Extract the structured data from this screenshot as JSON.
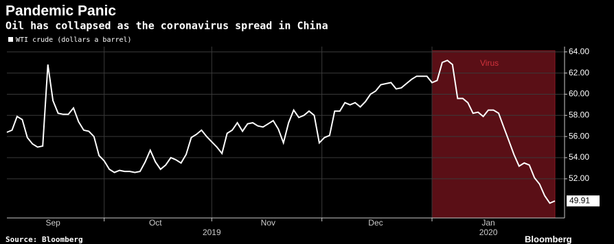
{
  "chart_data": {
    "type": "line",
    "title": "Pandemic Panic",
    "subtitle": "Oil has collapsed as the coronavirus spread in China",
    "source": "Source: Bloomberg",
    "brand": "Bloomberg",
    "annotation": "Virus",
    "categories": [
      null,
      null,
      null,
      null,
      null,
      null,
      null,
      null,
      null,
      "Sep",
      null,
      null,
      null,
      null,
      null,
      null,
      null,
      null,
      null,
      null,
      null,
      null,
      null,
      null,
      null,
      null,
      null,
      null,
      null,
      "Oct",
      null,
      null,
      null,
      null,
      null,
      null,
      null,
      null,
      null,
      null,
      null,
      null,
      null,
      null,
      null,
      null,
      null,
      null,
      null,
      null,
      null,
      "Nov",
      null,
      null,
      null,
      null,
      null,
      null,
      null,
      null,
      null,
      null,
      null,
      null,
      null,
      null,
      null,
      null,
      null,
      null,
      null,
      null,
      "Dec",
      null,
      null,
      null,
      null,
      null,
      null,
      null,
      null,
      null,
      null,
      null,
      null,
      null,
      null,
      null,
      null,
      null,
      null,
      null,
      null,
      null,
      "Jan",
      null,
      null,
      null,
      null,
      null,
      null,
      null,
      null,
      null,
      null,
      null,
      null,
      null
    ],
    "year_labels": [
      null,
      null,
      null,
      null,
      null,
      null,
      null,
      null,
      null,
      null,
      null,
      null,
      null,
      null,
      null,
      null,
      null,
      null,
      null,
      null,
      null,
      null,
      null,
      null,
      null,
      null,
      null,
      null,
      null,
      null,
      null,
      null,
      null,
      null,
      null,
      null,
      null,
      null,
      null,
      null,
      "2019",
      null,
      null,
      null,
      null,
      null,
      null,
      null,
      null,
      null,
      null,
      null,
      null,
      null,
      null,
      null,
      null,
      null,
      null,
      null,
      null,
      null,
      null,
      null,
      null,
      null,
      null,
      null,
      null,
      null,
      null,
      null,
      null,
      null,
      null,
      null,
      null,
      null,
      null,
      null,
      null,
      null,
      null,
      null,
      null,
      null,
      null,
      null,
      null,
      null,
      null,
      null,
      null,
      null,
      "2020",
      null,
      null,
      null,
      null,
      null,
      null,
      null,
      null,
      null,
      null,
      null,
      null,
      null
    ],
    "series": [
      {
        "name": "WTI crude (dollars a barrel)",
        "color": "#ffffff",
        "values": [
          56.4,
          56.6,
          57.9,
          57.6,
          55.9,
          55.3,
          55.0,
          55.1,
          62.8,
          59.4,
          58.2,
          58.1,
          58.1,
          58.7,
          57.4,
          56.6,
          56.5,
          56.0,
          54.2,
          53.7,
          52.9,
          52.6,
          52.8,
          52.7,
          52.7,
          52.6,
          52.7,
          53.6,
          54.7,
          53.6,
          52.9,
          53.3,
          54.0,
          53.8,
          53.5,
          54.3,
          55.9,
          56.2,
          56.6,
          56.0,
          55.5,
          55.0,
          54.4,
          56.3,
          56.6,
          57.3,
          56.5,
          57.2,
          57.3,
          57.0,
          56.9,
          57.2,
          57.5,
          56.7,
          55.4,
          57.3,
          58.5,
          57.8,
          58.0,
          58.4,
          58.0,
          55.4,
          55.9,
          56.1,
          58.4,
          58.4,
          59.2,
          59.0,
          59.2,
          58.8,
          59.3,
          60.0,
          60.3,
          60.9,
          61.0,
          61.1,
          60.5,
          60.6,
          61.0,
          61.4,
          61.7,
          61.7,
          61.7,
          61.1,
          61.3,
          63.0,
          63.2,
          62.8,
          59.6,
          59.6,
          59.2,
          58.2,
          58.3,
          57.9,
          58.5,
          58.5,
          58.2,
          56.9,
          55.6,
          54.3,
          53.2,
          53.5,
          53.3,
          52.1,
          51.5,
          50.4,
          49.7,
          49.91
        ]
      }
    ],
    "ylim": [
      48.3,
      64.5
    ],
    "yticks": [
      {
        "value": 52,
        "label": "52.00"
      },
      {
        "value": 54,
        "label": "54.00"
      },
      {
        "value": 56,
        "label": "56.00"
      },
      {
        "value": 58,
        "label": "58.00"
      },
      {
        "value": 60,
        "label": "60.00"
      },
      {
        "value": 62,
        "label": "62.00"
      },
      {
        "value": 64,
        "label": "64.00"
      }
    ],
    "grid": true,
    "shade_color": "#5a0f16"
  }
}
